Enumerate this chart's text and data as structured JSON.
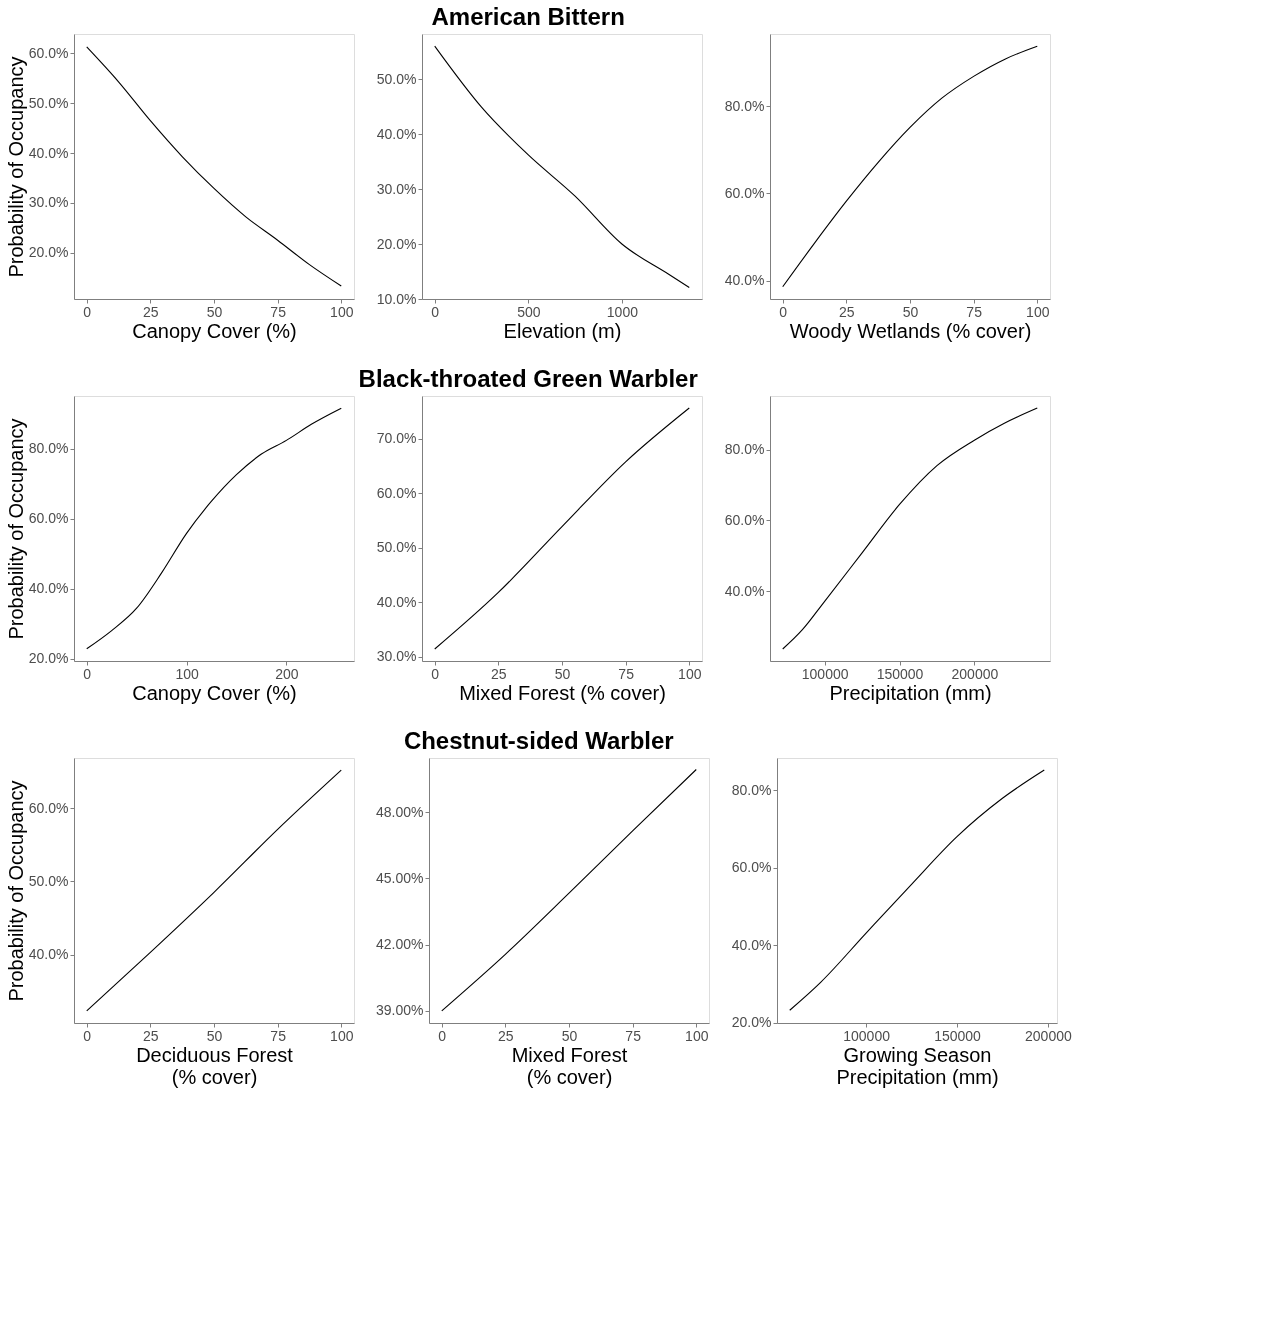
{
  "chart_data": [
    {
      "type": "line",
      "xlabel": "Canopy Cover (%)",
      "ylabel": "Probability of Occupancy",
      "x": [
        0,
        12.5,
        25,
        37.5,
        50,
        62.5,
        75,
        87.5,
        100
      ],
      "series": [
        {
          "color": "#000000",
          "values": [
            0.613,
            0.543,
            0.465,
            0.393,
            0.329,
            0.272,
            0.225,
            0.176,
            0.133
          ]
        }
      ],
      "xlim": [
        -5,
        105
      ],
      "ylim": [
        0.107,
        0.639
      ],
      "xticks": [
        0,
        25,
        50,
        75,
        100
      ],
      "yticks": [
        {
          "value": 0.2,
          "label": "20.0%"
        },
        {
          "value": 0.3,
          "label": "30.0%"
        },
        {
          "value": 0.4,
          "label": "40.0%"
        },
        {
          "value": 0.5,
          "label": "50.0%"
        },
        {
          "value": 0.6,
          "label": "60.0%"
        }
      ],
      "grid": false
    },
    {
      "type": "line",
      "title": "American Bittern",
      "xlabel": "Elevation (m)",
      "x": [
        0,
        250,
        500,
        750,
        1000,
        1250,
        1360
      ],
      "series": [
        {
          "color": "#000000",
          "values": [
            0.56,
            0.449,
            0.362,
            0.287,
            0.2,
            0.145,
            0.121
          ]
        }
      ],
      "xlim": [
        -68,
        1428
      ],
      "ylim": [
        0.1,
        0.582
      ],
      "xticks": [
        0,
        500,
        1000
      ],
      "yticks": [
        {
          "value": 0.1,
          "label": "10.0%"
        },
        {
          "value": 0.2,
          "label": "20.0%"
        },
        {
          "value": 0.3,
          "label": "30.0%"
        },
        {
          "value": 0.4,
          "label": "40.0%"
        },
        {
          "value": 0.5,
          "label": "50.0%"
        }
      ],
      "grid": false
    },
    {
      "type": "line",
      "xlabel": "Woody Wetlands (% cover)",
      "x": [
        0,
        12.5,
        25,
        37.5,
        50,
        62.5,
        75,
        87.5,
        100
      ],
      "series": [
        {
          "color": "#000000",
          "values": [
            0.386,
            0.486,
            0.582,
            0.671,
            0.751,
            0.818,
            0.868,
            0.908,
            0.937
          ]
        }
      ],
      "xlim": [
        -5,
        105
      ],
      "ylim": [
        0.358,
        0.965
      ],
      "xticks": [
        0,
        25,
        50,
        75,
        100
      ],
      "yticks": [
        {
          "value": 0.4,
          "label": "40.0%"
        },
        {
          "value": 0.6,
          "label": "60.0%"
        },
        {
          "value": 0.8,
          "label": "80.0%"
        }
      ],
      "grid": false
    },
    {
      "type": "line",
      "xlabel": "Canopy Cover (%)",
      "ylabel": "Probability of Occupancy",
      "x": [
        0,
        25,
        50,
        75,
        100,
        125,
        150,
        175,
        200,
        225,
        255
      ],
      "series": [
        {
          "color": "#000000",
          "values": [
            0.228,
            0.28,
            0.344,
            0.445,
            0.558,
            0.65,
            0.726,
            0.785,
            0.824,
            0.87,
            0.916
          ]
        }
      ],
      "xlim": [
        -12.75,
        267.75
      ],
      "ylim": [
        0.193,
        0.951
      ],
      "xticks": [
        0,
        100,
        200
      ],
      "yticks": [
        {
          "value": 0.2,
          "label": "20.0%"
        },
        {
          "value": 0.4,
          "label": "40.0%"
        },
        {
          "value": 0.6,
          "label": "60.0%"
        },
        {
          "value": 0.8,
          "label": "80.0%"
        }
      ],
      "grid": false
    },
    {
      "type": "line",
      "title": "Black-throated Green Warbler",
      "xlabel": "Mixed Forest (% cover)",
      "x": [
        0,
        25,
        50,
        75,
        100
      ],
      "series": [
        {
          "color": "#000000",
          "values": [
            0.314,
            0.418,
            0.539,
            0.658,
            0.757
          ]
        }
      ],
      "xlim": [
        -5,
        105
      ],
      "ylim": [
        0.292,
        0.779
      ],
      "xticks": [
        0,
        25,
        50,
        75,
        100
      ],
      "yticks": [
        {
          "value": 0.3,
          "label": "30.0%"
        },
        {
          "value": 0.4,
          "label": "40.0%"
        },
        {
          "value": 0.5,
          "label": "50.0%"
        },
        {
          "value": 0.6,
          "label": "60.0%"
        },
        {
          "value": 0.7,
          "label": "70.0%"
        }
      ],
      "grid": false
    },
    {
      "type": "line",
      "xlabel": "Precipitation (mm)",
      "x": [
        72000,
        85000,
        100000,
        125000,
        150000,
        175000,
        200000,
        220000,
        242000
      ],
      "series": [
        {
          "color": "#000000",
          "values": [
            0.236,
            0.29,
            0.371,
            0.508,
            0.645,
            0.755,
            0.827,
            0.875,
            0.918
          ]
        }
      ],
      "xlim": [
        63500,
        250500
      ],
      "ylim": [
        0.202,
        0.952
      ],
      "xticks": [
        100000,
        150000,
        200000
      ],
      "yticks": [
        {
          "value": 0.4,
          "label": "40.0%"
        },
        {
          "value": 0.6,
          "label": "60.0%"
        },
        {
          "value": 0.8,
          "label": "80.0%"
        }
      ],
      "grid": false
    },
    {
      "type": "line",
      "xlabel": "Deciduous Forest\n(% cover)",
      "ylabel": "Probability of Occupancy",
      "x": [
        0,
        25,
        50,
        75,
        100
      ],
      "series": [
        {
          "color": "#000000",
          "values": [
            0.323,
            0.403,
            0.485,
            0.571,
            0.652
          ]
        }
      ],
      "xlim": [
        -5,
        105
      ],
      "ylim": [
        0.3065,
        0.6685
      ],
      "xticks": [
        0,
        25,
        50,
        75,
        100
      ],
      "yticks": [
        {
          "value": 0.4,
          "label": "40.0%"
        },
        {
          "value": 0.5,
          "label": "50.0%"
        },
        {
          "value": 0.6,
          "label": "60.0%"
        }
      ],
      "grid": false
    },
    {
      "type": "line",
      "title": "Chestnut-sided Warbler",
      "xlabel": "Mixed Forest\n(% cover)",
      "x": [
        0,
        25,
        50,
        75,
        100
      ],
      "series": [
        {
          "color": "#000000",
          "values": [
            0.39,
            0.4156,
            0.4433,
            0.4715,
            0.4993
          ]
        }
      ],
      "xlim": [
        -5,
        105
      ],
      "ylim": [
        0.3845,
        0.5045
      ],
      "xticks": [
        0,
        25,
        50,
        75,
        100
      ],
      "yticks": [
        {
          "value": 0.39,
          "label": "39.00%"
        },
        {
          "value": 0.42,
          "label": "42.00%"
        },
        {
          "value": 0.45,
          "label": "45.00%"
        },
        {
          "value": 0.48,
          "label": "48.00%"
        }
      ],
      "grid": false
    },
    {
      "type": "line",
      "xlabel": "Growing Season\nPrecipitation (mm)",
      "x": [
        58000,
        75000,
        100000,
        125000,
        150000,
        175000,
        198000
      ],
      "series": [
        {
          "color": "#000000",
          "values": [
            0.232,
            0.304,
            0.431,
            0.557,
            0.68,
            0.779,
            0.852
          ]
        }
      ],
      "xlim": [
        51000,
        205000
      ],
      "ylim": [
        0.199,
        0.883
      ],
      "xticks": [
        100000,
        150000,
        200000
      ],
      "yticks": [
        {
          "value": 0.2,
          "label": "20.0%"
        },
        {
          "value": 0.4,
          "label": "40.0%"
        },
        {
          "value": 0.6,
          "label": "60.0%"
        },
        {
          "value": 0.8,
          "label": "80.0%"
        }
      ],
      "grid": false
    }
  ]
}
